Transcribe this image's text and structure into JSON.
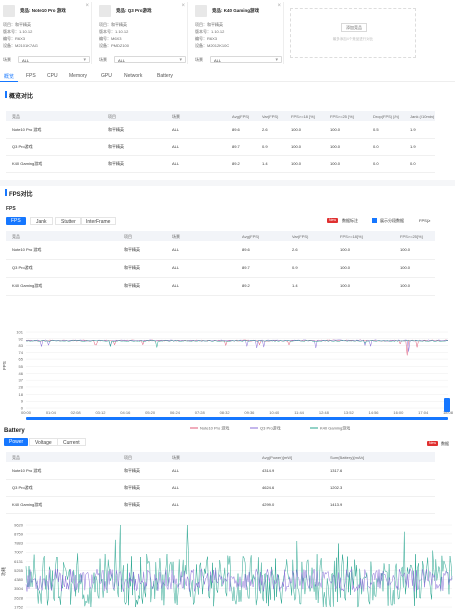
{
  "devices": [
    {
      "title": "竞品: Note10 Pro 游戏",
      "project": "项目：和平精英",
      "version": "版本号：1.10.12",
      "device_no": "编号：R6X3",
      "device": "设备：M2101K7AG",
      "select_label": "场景",
      "select_value": "ALL"
    },
    {
      "title": "竞品: Q3 Pro游戏",
      "project": "项目：和平精英",
      "version": "版本号：1.10.12",
      "device_no": "编号：M6X3",
      "device": "设备：PMDZ100",
      "select_label": "场景",
      "select_value": "ALL"
    },
    {
      "title": "竞品: K40 Gaming游戏",
      "project": "项目：和平精英",
      "version": "版本号：1.10.12",
      "device_no": "编号：R6X3",
      "device": "设备：M2012K10C",
      "select_label": "场景",
      "select_value": "ALL"
    }
  ],
  "add_card": {
    "button": "添加竞品",
    "tip": "最多添加4个竞品进行对比"
  },
  "tabs": [
    "概览",
    "FPS",
    "CPU",
    "Memory",
    "GPU",
    "Network",
    "Battery"
  ],
  "overview": {
    "title": "概览对比",
    "headers": [
      "竞品",
      "项目",
      "场景",
      "Avg(FPS)",
      "Var(FPS)",
      "FPS>=18 [%]",
      "FPS>=25 [%]",
      "Drop(FPS) [/h]",
      "Jank (/10min)"
    ],
    "rows": [
      [
        "Note10 Pro 游戏",
        "和平精英",
        "ALL",
        "89.6",
        "2.6",
        "100.0",
        "100.0",
        "0.5",
        "1.9"
      ],
      [
        "Q3 Pro游戏",
        "和平精英",
        "ALL",
        "89.7",
        "0.9",
        "100.0",
        "100.0",
        "0.0",
        "1.9"
      ],
      [
        "K40 Gaming游戏",
        "和平精英",
        "ALL",
        "89.2",
        "1.4",
        "100.0",
        "100.0",
        "0.0",
        "0.0"
      ]
    ]
  },
  "fps": {
    "title": "FPS对比",
    "subtitle": "FPS",
    "tabs": [
      "FPS",
      "Jank",
      "Stutter",
      "InterFrame"
    ],
    "badge": "New",
    "opt1": "数据标注",
    "opt2": "展示分段数据",
    "opt3": "FPS(≥",
    "headers": [
      "竞品",
      "项目",
      "场景",
      "Avg(FPS)",
      "Var(FPS)",
      "FPS>=18[%]",
      "FPS>=25[%]"
    ],
    "rows": [
      [
        "Note10 Pro 游戏",
        "和平精英",
        "ALL",
        "89.6",
        "2.6",
        "100.0",
        "100.0"
      ],
      [
        "Q3 Pro游戏",
        "和平精英",
        "ALL",
        "89.7",
        "0.9",
        "100.0",
        "100.0"
      ],
      [
        "K40 Gaming游戏",
        "和平精英",
        "ALL",
        "89.2",
        "1.4",
        "100.0",
        "100.0"
      ]
    ]
  },
  "battery": {
    "title": "Battery",
    "tabs": [
      "Power",
      "Voltage",
      "Current"
    ],
    "badge": "New",
    "opt1": "数据",
    "headers": [
      "竞品",
      "项目",
      "场景",
      "Avg(Power)[mW]",
      "Sum(Battery)[mAh]"
    ],
    "rows": [
      [
        "Note10 Pro 游戏",
        "和平精英",
        "ALL",
        "4314.9",
        "1317.6"
      ],
      [
        "Q3 Pro游戏",
        "和平精英",
        "ALL",
        "4624.6",
        "1202.3"
      ],
      [
        "K40 Gaming游戏",
        "和平精英",
        "ALL",
        "4299.0",
        "1413.9"
      ]
    ]
  },
  "chart_data": [
    {
      "type": "line",
      "ylabel": "FPS",
      "y_ticks": [
        "101",
        "92",
        "83",
        "74",
        "65",
        "55",
        "46",
        "37",
        "28",
        "18",
        "9",
        "0"
      ],
      "x_ticks": [
        "00:00",
        "01:04",
        "02:08",
        "03:12",
        "04:16",
        "05:20",
        "06:24",
        "07:28",
        "08:32",
        "09:36",
        "10:40",
        "11:44",
        "12:48",
        "13:52",
        "14:56",
        "16:00",
        "17:04",
        "18:08"
      ],
      "ylim": [
        0,
        101
      ],
      "series": [
        {
          "name": "Note10 Pro 游戏",
          "color": "#e05a78",
          "base": 89.6
        },
        {
          "name": "Q3 Pro游戏",
          "color": "#8a6fd8",
          "base": 89.7
        },
        {
          "name": "K40 Gaming游戏",
          "color": "#27a58f",
          "base": 89.2
        }
      ]
    },
    {
      "type": "line",
      "ylabel": "功耗",
      "y_ticks": [
        "9620",
        "8759",
        "7883",
        "7007",
        "6131",
        "5255",
        "4380",
        "3504",
        "2628",
        "1752"
      ],
      "ylim": [
        1752,
        9620
      ],
      "series": [
        {
          "name": "Note10 Pro 游戏",
          "color": "#8a6fd8",
          "base": 4314.9
        },
        {
          "name": "K40 Gaming游戏",
          "color": "#27a58f",
          "base": 4299.0
        }
      ]
    }
  ]
}
